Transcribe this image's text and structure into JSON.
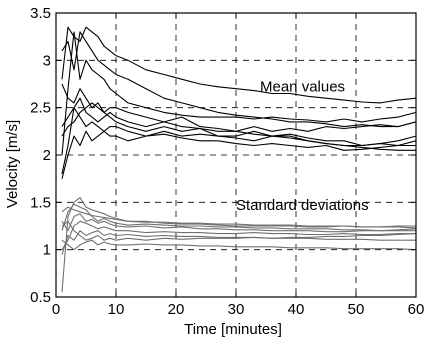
{
  "chart_data": {
    "type": "line",
    "xlabel": "Time [minutes]",
    "ylabel": "Velocity [m/s]",
    "xlim": [
      0,
      60
    ],
    "ylim": [
      0.5,
      3.5
    ],
    "xticks": [
      0,
      10,
      20,
      30,
      40,
      50,
      60
    ],
    "yticks": [
      0.5,
      1,
      1.5,
      2,
      2.5,
      3,
      3.5
    ],
    "xtick_labels": [
      "0",
      "10",
      "20",
      "30",
      "40",
      "50",
      "60"
    ],
    "ytick_labels": [
      "0.5",
      "1",
      "1.5",
      "2",
      "2.5",
      "3",
      "3.5"
    ],
    "grid": "dashed at major ticks",
    "annotations": [
      {
        "text": "Mean values",
        "x": 34,
        "y": 2.67
      },
      {
        "text": "Standard deviations",
        "x": 30,
        "y": 1.42
      }
    ],
    "series_groups": [
      {
        "group": "mean",
        "color": "#000000",
        "x": [
          1,
          2,
          3,
          4,
          5,
          6,
          7,
          8,
          9,
          10,
          12,
          15,
          18,
          21,
          24,
          27,
          30,
          33,
          36,
          39,
          42,
          45,
          48,
          51,
          54,
          57,
          60
        ],
        "series": [
          {
            "values": [
              2.8,
              3.35,
              3.25,
              3.2,
              3.35,
              3.3,
              3.25,
              3.15,
              3.1,
              3.05,
              3.0,
              2.9,
              2.85,
              2.8,
              2.75,
              2.72,
              2.7,
              2.68,
              2.65,
              2.65,
              2.62,
              2.6,
              2.58,
              2.56,
              2.55,
              2.58,
              2.6
            ]
          },
          {
            "values": [
              3.1,
              3.2,
              2.9,
              3.3,
              3.2,
              3.1,
              3.0,
              2.95,
              2.9,
              2.85,
              2.8,
              2.7,
              2.6,
              2.55,
              2.5,
              2.45,
              2.42,
              2.4,
              2.38,
              2.35,
              2.35,
              2.33,
              2.3,
              2.32,
              2.3,
              2.3,
              2.35
            ]
          },
          {
            "values": [
              2.0,
              2.7,
              3.3,
              2.8,
              3.0,
              2.9,
              2.85,
              2.8,
              2.7,
              2.65,
              2.55,
              2.5,
              2.45,
              2.42,
              2.4,
              2.4,
              2.4,
              2.38,
              2.4,
              2.38,
              2.37,
              2.35,
              2.38,
              2.35,
              2.38,
              2.4,
              2.45
            ]
          },
          {
            "values": [
              2.75,
              2.6,
              2.55,
              2.7,
              2.6,
              2.5,
              2.55,
              2.45,
              2.5,
              2.5,
              2.45,
              2.4,
              2.35,
              2.4,
              2.3,
              2.28,
              2.25,
              2.22,
              2.2,
              2.2,
              2.15,
              2.12,
              2.1,
              2.1,
              2.12,
              2.1,
              2.15
            ]
          },
          {
            "values": [
              1.8,
              2.1,
              2.5,
              2.6,
              2.45,
              2.4,
              2.35,
              2.4,
              2.45,
              2.4,
              2.35,
              2.3,
              2.35,
              2.3,
              2.28,
              2.25,
              2.25,
              2.3,
              2.25,
              2.28,
              2.25,
              2.3,
              2.28,
              2.3,
              2.32,
              2.3,
              2.35
            ]
          },
          {
            "values": [
              2.2,
              2.3,
              2.35,
              2.45,
              2.5,
              2.55,
              2.5,
              2.45,
              2.4,
              2.35,
              2.3,
              2.25,
              2.3,
              2.25,
              2.28,
              2.2,
              2.2,
              2.25,
              2.2,
              2.22,
              2.18,
              2.15,
              2.15,
              2.1,
              2.12,
              2.15,
              2.2
            ]
          },
          {
            "values": [
              1.75,
              2.0,
              2.2,
              2.1,
              2.25,
              2.15,
              2.2,
              2.25,
              2.2,
              2.2,
              2.15,
              2.2,
              2.25,
              2.2,
              2.22,
              2.2,
              2.18,
              2.15,
              2.2,
              2.18,
              2.15,
              2.12,
              2.1,
              2.08,
              2.06,
              2.05,
              2.05
            ]
          },
          {
            "values": [
              2.3,
              2.4,
              2.5,
              2.4,
              2.3,
              2.35,
              2.3,
              2.25,
              2.3,
              2.3,
              2.25,
              2.2,
              2.22,
              2.18,
              2.15,
              2.15,
              2.12,
              2.1,
              2.12,
              2.1,
              2.08,
              2.1,
              2.05,
              2.06,
              2.08,
              2.1,
              2.1
            ]
          }
        ]
      },
      {
        "group": "std",
        "color": "#707070",
        "x": [
          1,
          2,
          3,
          4,
          5,
          6,
          7,
          8,
          9,
          10,
          12,
          15,
          18,
          21,
          24,
          27,
          30,
          33,
          36,
          39,
          42,
          45,
          48,
          51,
          54,
          57,
          60
        ],
        "series": [
          {
            "values": [
              0.55,
              1.35,
              1.5,
              1.55,
              1.45,
              1.42,
              1.4,
              1.38,
              1.35,
              1.33,
              1.3,
              1.3,
              1.28,
              1.27,
              1.27,
              1.26,
              1.25,
              1.25,
              1.25,
              1.25,
              1.24,
              1.24,
              1.25,
              1.24,
              1.24,
              1.25,
              1.25
            ]
          },
          {
            "values": [
              1.2,
              1.4,
              1.48,
              1.45,
              1.42,
              1.35,
              1.3,
              1.33,
              1.3,
              1.28,
              1.26,
              1.27,
              1.26,
              1.25,
              1.25,
              1.24,
              1.24,
              1.23,
              1.23,
              1.22,
              1.22,
              1.22,
              1.21,
              1.21,
              1.2,
              1.21,
              1.22
            ]
          },
          {
            "values": [
              1.3,
              1.2,
              1.35,
              1.38,
              1.3,
              1.32,
              1.28,
              1.3,
              1.27,
              1.25,
              1.24,
              1.25,
              1.23,
              1.24,
              1.22,
              1.22,
              1.21,
              1.21,
              1.2,
              1.2,
              1.2,
              1.19,
              1.19,
              1.2,
              1.2,
              1.2,
              1.2
            ]
          },
          {
            "values": [
              1.0,
              1.1,
              1.25,
              1.3,
              1.28,
              1.25,
              1.22,
              1.24,
              1.22,
              1.2,
              1.2,
              1.18,
              1.19,
              1.18,
              1.18,
              1.17,
              1.17,
              1.18,
              1.17,
              1.17,
              1.16,
              1.16,
              1.17,
              1.16,
              1.16,
              1.17,
              1.17
            ]
          },
          {
            "values": [
              0.95,
              1.15,
              1.1,
              1.2,
              1.15,
              1.18,
              1.2,
              1.15,
              1.17,
              1.15,
              1.16,
              1.14,
              1.15,
              1.14,
              1.14,
              1.13,
              1.13,
              1.13,
              1.12,
              1.12,
              1.12,
              1.11,
              1.11,
              1.11,
              1.1,
              1.1,
              1.1
            ]
          },
          {
            "values": [
              1.1,
              1.05,
              1.0,
              1.05,
              1.08,
              1.1,
              1.05,
              1.08,
              1.06,
              1.05,
              1.05,
              1.06,
              1.05,
              1.05,
              1.04,
              1.04,
              1.03,
              1.03,
              1.03,
              1.02,
              1.02,
              1.02,
              1.01,
              1.01,
              1.01,
              1.01,
              1.0
            ]
          },
          {
            "values": [
              1.25,
              1.3,
              1.2,
              1.15,
              1.1,
              1.12,
              1.15,
              1.1,
              1.12,
              1.1,
              1.12,
              1.1,
              1.12,
              1.11,
              1.12,
              1.12,
              1.12,
              1.13,
              1.12,
              1.13,
              1.13,
              1.14,
              1.14,
              1.15,
              1.15,
              1.16,
              1.17
            ]
          },
          {
            "values": [
              1.4,
              1.45,
              1.42,
              1.4,
              1.38,
              1.36,
              1.35,
              1.34,
              1.33,
              1.32,
              1.3,
              1.29,
              1.29,
              1.28,
              1.28,
              1.27,
              1.27,
              1.26,
              1.26,
              1.26,
              1.25,
              1.25,
              1.25,
              1.24,
              1.24,
              1.24,
              1.23
            ]
          }
        ]
      }
    ]
  }
}
